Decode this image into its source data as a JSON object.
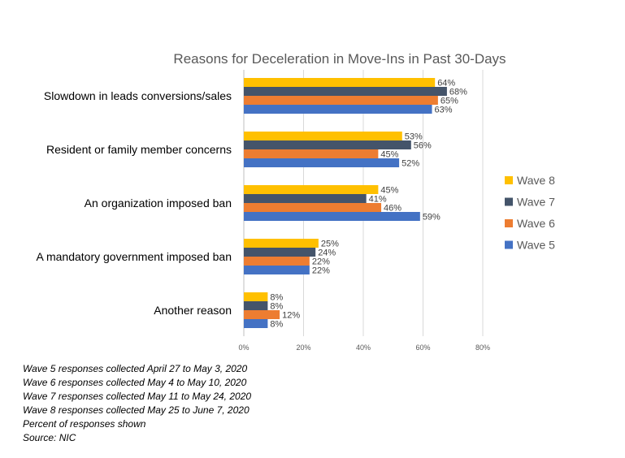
{
  "chart_data": {
    "type": "bar",
    "orientation": "horizontal",
    "title": "Reasons for Deceleration in Move-Ins in Past 30-Days",
    "categories": [
      "Slowdown in leads conversions/sales",
      "Resident or family member concerns",
      "An organization imposed ban",
      "A mandatory government imposed ban",
      "Another reason"
    ],
    "series": [
      {
        "name": "Wave 8",
        "color": "#FFC000",
        "values": [
          64,
          53,
          45,
          25,
          8
        ],
        "labels": [
          "64%",
          "53%",
          "45%",
          "25%",
          "8%"
        ]
      },
      {
        "name": "Wave 7",
        "color": "#44546A",
        "values": [
          68,
          56,
          41,
          24,
          8
        ],
        "labels": [
          "68%",
          "56%",
          "41%",
          "24%",
          "8%"
        ]
      },
      {
        "name": "Wave 6",
        "color": "#ED7D31",
        "values": [
          65,
          45,
          46,
          22,
          12
        ],
        "labels": [
          "65%",
          "45%",
          "46%",
          "22%",
          "12%"
        ]
      },
      {
        "name": "Wave 5",
        "color": "#4472C4",
        "values": [
          63,
          52,
          59,
          22,
          8
        ],
        "labels": [
          "63%",
          "52%",
          "59%",
          "22%",
          "8%"
        ]
      }
    ],
    "xlim": [
      0,
      80
    ],
    "xticks": [
      0,
      20,
      40,
      60,
      80
    ],
    "xtick_labels": [
      "0%",
      "20%",
      "40%",
      "60%",
      "80%"
    ],
    "grid": true,
    "legend_position": "right"
  },
  "notes": [
    "Wave 5 responses collected April 27 to May 3, 2020",
    "Wave 6 responses collected May 4 to May 10, 2020",
    "Wave 7 responses collected May 11 to May 24, 2020",
    "Wave 8 responses collected May 25 to June 7, 2020",
    "Percent of responses shown",
    "Source: NIC"
  ]
}
